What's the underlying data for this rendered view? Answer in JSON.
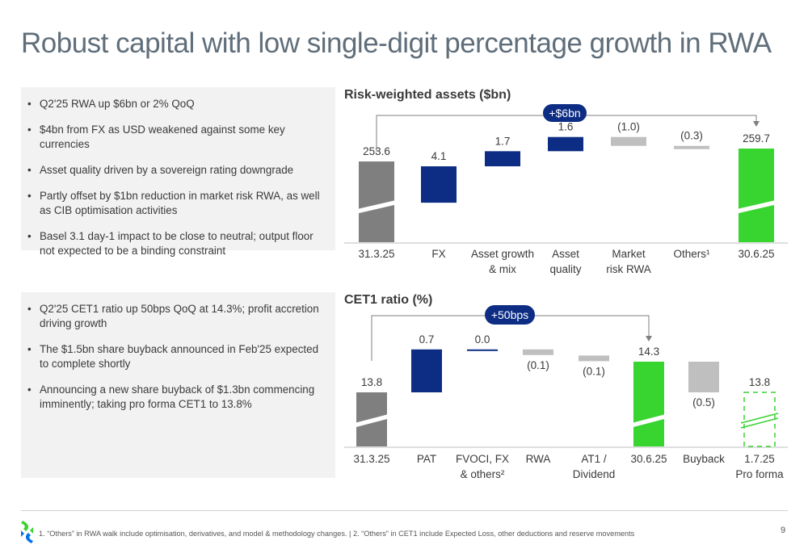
{
  "title": "Robust capital with low single-digit percentage growth in RWA",
  "panel_top": {
    "bullets": [
      "Q2'25 RWA up $6bn or 2% QoQ",
      "$4bn from FX as USD weakened against some key currencies",
      "Asset quality driven by a sovereign rating downgrade",
      "Partly offset by $1bn reduction in market risk RWA, as well as CIB optimisation activities",
      "Basel 3.1 day-1 impact to be close to neutral; output floor not expected to be a binding constraint"
    ]
  },
  "panel_bottom": {
    "bullets": [
      "Q2'25 CET1 ratio up 50bps QoQ at 14.3%; profit accretion driving growth",
      "The $1.5bn share buyback announced in Feb'25 expected to complete shortly",
      "Announcing a new share buyback of $1.3bn commencing imminently; taking pro forma CET1 to 13.8%"
    ]
  },
  "chart_data": [
    {
      "type": "bar",
      "subtype": "waterfall",
      "title": "Risk-weighted assets ($bn)",
      "callout": "+$6bn",
      "categories": [
        [
          "31.3.25"
        ],
        [
          "FX"
        ],
        [
          "Asset growth",
          "& mix"
        ],
        [
          "Asset",
          "quality"
        ],
        [
          "Market",
          "risk RWA"
        ],
        [
          "Others¹"
        ],
        [
          "30.6.25"
        ]
      ],
      "values": [
        253.6,
        4.1,
        1.7,
        1.6,
        -1.0,
        -0.3,
        259.7
      ],
      "labels": [
        "253.6",
        "4.1",
        "1.7",
        "1.6",
        "(1.0)",
        "(0.3)",
        "259.7"
      ],
      "kinds": [
        "total",
        "increase",
        "increase",
        "increase",
        "decrease",
        "decrease",
        "total"
      ],
      "axis_break": true
    },
    {
      "type": "bar",
      "subtype": "waterfall",
      "title": "CET1 ratio (%)",
      "callout": "+50bps",
      "categories": [
        [
          "31.3.25"
        ],
        [
          "PAT"
        ],
        [
          "FVOCI, FX",
          "& others²"
        ],
        [
          "RWA"
        ],
        [
          "AT1 /",
          "Dividend"
        ],
        [
          "30.6.25"
        ],
        [
          "Buyback"
        ],
        [
          "1.7.25",
          "Pro forma"
        ]
      ],
      "values": [
        13.8,
        0.7,
        0.0,
        -0.1,
        -0.1,
        14.3,
        -0.5,
        13.8
      ],
      "labels": [
        "13.8",
        "0.7",
        "0.0",
        "(0.1)",
        "(0.1)",
        "14.3",
        "(0.5)",
        "13.8"
      ],
      "kinds": [
        "total0",
        "increase",
        "increase",
        "decrease",
        "decrease",
        "total",
        "decrease",
        "proforma"
      ],
      "axis_break": true
    }
  ],
  "colors": {
    "grey_total": "#7f7f7f",
    "navy": "#0c2d83",
    "light_grey": "#bfbfbf",
    "green": "#38d430",
    "callout_fill": "#0c2d83",
    "connector": "#7f7f7f",
    "logo_green": "#38d430",
    "logo_blue": "#0473ea"
  },
  "footnote": "1. “Others” in RWA walk include optimisation, derivatives, and model & methodology changes. | 2. “Others” in CET1 include Expected Loss, other deductions and reserve movements",
  "page_number": "9"
}
